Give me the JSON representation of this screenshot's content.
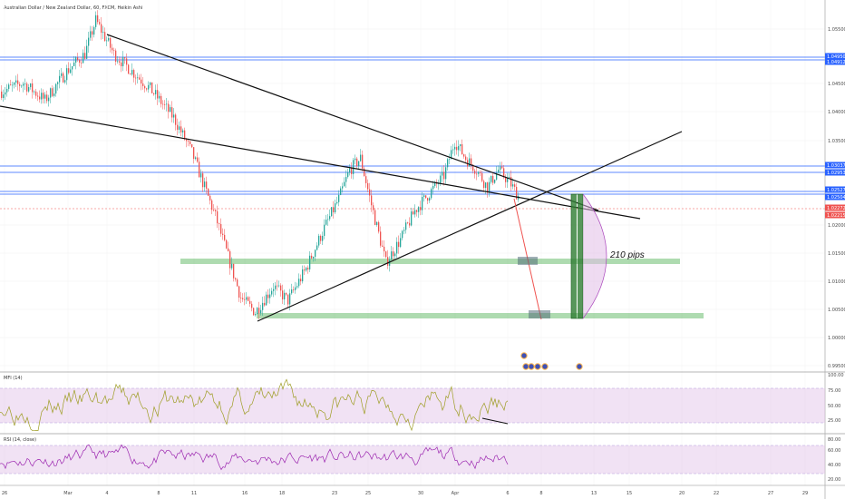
{
  "header": {
    "title": "Australian Dollar / New Zealand Dollar, 60, FXCM, Heikin Ashi"
  },
  "colors": {
    "up": "#26a69a",
    "down": "#ef5350",
    "zone": "#4caf50",
    "hline": "#2962ff",
    "band": "#e1bee7",
    "mfi": "#9e9d24",
    "rsi": "#9c27b0",
    "arc": "#ce93d8"
  },
  "chart_data": [
    {
      "type": "candlestick",
      "x_ticks": [
        "26",
        "Mar",
        "4",
        "8",
        "11",
        "16",
        "18",
        "23",
        "25",
        "30",
        "Apr",
        "6",
        "8",
        "13",
        "15",
        "20",
        "22",
        "27",
        "29"
      ],
      "y_ticks": [
        "1.05500",
        "1.04500",
        "1.04000",
        "1.03500",
        "1.02000",
        "1.01500",
        "1.01000",
        "1.00500",
        "1.00000",
        "0.99500"
      ],
      "price_labels": [
        {
          "text": "1.04950",
          "color": "#2962ff"
        },
        {
          "text": "1.04912",
          "color": "#2962ff"
        },
        {
          "text": "1.03037",
          "color": "#2962ff"
        },
        {
          "text": "1.02953",
          "color": "#2962ff"
        },
        {
          "text": "1.02527",
          "color": "#2962ff"
        },
        {
          "text": "1.02504",
          "color": "#2962ff"
        },
        {
          "text": "1.02272",
          "color": "#ef5350"
        },
        {
          "text": "1.02215",
          "color": "#ef5350"
        }
      ],
      "ylim": [
        0.9935,
        1.0565
      ],
      "path": [
        [
          0,
          1.0415
        ],
        [
          12,
          1.043
        ],
        [
          24,
          1.04
        ],
        [
          36,
          1.045
        ],
        [
          46,
          1.048
        ],
        [
          52,
          1.0538
        ],
        [
          62,
          1.048
        ],
        [
          72,
          1.045
        ],
        [
          82,
          1.042
        ],
        [
          95,
          1.037
        ],
        [
          105,
          1.031
        ],
        [
          112,
          1.025
        ],
        [
          118,
          1.02
        ],
        [
          126,
          1.012
        ],
        [
          132,
          1.006
        ],
        [
          140,
          1.0035
        ],
        [
          150,
          1.008
        ],
        [
          158,
          1.0055
        ],
        [
          168,
          1.011
        ],
        [
          178,
          1.018
        ],
        [
          186,
          1.023
        ],
        [
          192,
          1.028
        ],
        [
          198,
          1.03
        ],
        [
          204,
          1.022
        ],
        [
          212,
          1.012
        ],
        [
          220,
          1.016
        ],
        [
          228,
          1.021
        ],
        [
          236,
          1.024
        ],
        [
          244,
          1.027
        ],
        [
          250,
          1.033
        ],
        [
          256,
          1.03
        ],
        [
          262,
          1.028
        ],
        [
          268,
          1.025
        ],
        [
          274,
          1.028
        ],
        [
          280,
          1.026
        ],
        [
          285,
          1.0235
        ]
      ],
      "annotation": "210 pips"
    },
    {
      "type": "line",
      "name": "MFI (14)",
      "y_ticks": [
        "100.00",
        "75.00",
        "50.00",
        "25.00"
      ],
      "ylim": [
        0,
        100
      ],
      "band": [
        20,
        80
      ]
    },
    {
      "type": "line",
      "name": "RSI (14, close)",
      "y_ticks": [
        "80.00",
        "60.00",
        "40.00",
        "20.00"
      ],
      "ylim": [
        10,
        90
      ],
      "band": [
        30,
        70
      ]
    }
  ]
}
